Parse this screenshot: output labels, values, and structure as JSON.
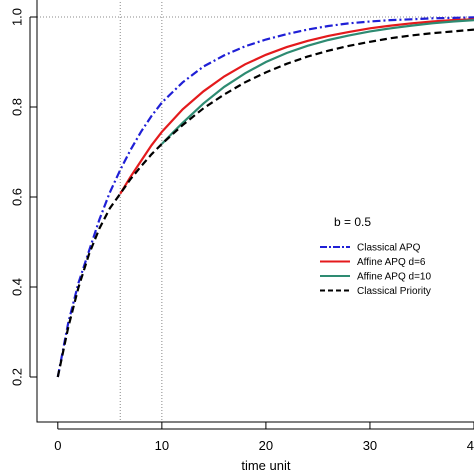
{
  "chart_data": {
    "type": "line",
    "xlabel": "time unit",
    "ylabel": "",
    "xlim": [
      -2,
      40
    ],
    "ylim": [
      0.1,
      1.0
    ],
    "xticks": [
      0,
      10,
      20,
      30,
      40
    ],
    "yticks": [
      0.2,
      0.4,
      0.6,
      0.8,
      1.0
    ],
    "xtick_labels": [
      "0",
      "10",
      "20",
      "30",
      "40"
    ],
    "ytick_labels": [
      "0.2",
      "0.4",
      "0.6",
      "0.8",
      "1.0"
    ],
    "reference_lines": {
      "x": [
        6,
        10
      ],
      "y": [
        1.0
      ],
      "style": "dotted"
    },
    "legend": {
      "title": "b = 0.5",
      "placement": "right",
      "entries": [
        "Classical APQ",
        "Affine APQ d=6",
        "Affine APQ d=10",
        "Classical Priority"
      ]
    },
    "series": [
      {
        "name": "Classical APQ",
        "color": "#1f1fd6",
        "dash": "dashdot",
        "x": [
          0,
          1,
          2,
          3,
          4,
          5,
          6,
          7,
          8,
          9,
          10,
          12,
          14,
          16,
          18,
          20,
          22,
          24,
          26,
          28,
          30,
          32,
          34,
          36,
          38,
          40
        ],
        "y": [
          0.2,
          0.32,
          0.41,
          0.48,
          0.55,
          0.61,
          0.66,
          0.705,
          0.745,
          0.78,
          0.81,
          0.855,
          0.89,
          0.915,
          0.935,
          0.95,
          0.962,
          0.972,
          0.98,
          0.986,
          0.99,
          0.993,
          0.995,
          0.997,
          0.998,
          0.999
        ]
      },
      {
        "name": "Affine APQ d=6",
        "color": "#e41a1c",
        "dash": "solid",
        "x": [
          6,
          7,
          8,
          9,
          10,
          12,
          14,
          16,
          18,
          20,
          22,
          24,
          26,
          28,
          30,
          32,
          34,
          36,
          38,
          40
        ],
        "y": [
          0.607,
          0.645,
          0.68,
          0.715,
          0.745,
          0.795,
          0.835,
          0.868,
          0.895,
          0.916,
          0.933,
          0.947,
          0.958,
          0.967,
          0.975,
          0.981,
          0.986,
          0.99,
          0.993,
          0.995
        ]
      },
      {
        "name": "Affine APQ d=10",
        "color": "#2e8b72",
        "dash": "solid",
        "x": [
          10,
          11,
          12,
          14,
          16,
          18,
          20,
          22,
          24,
          26,
          28,
          30,
          32,
          34,
          36,
          38,
          40
        ],
        "y": [
          0.718,
          0.742,
          0.765,
          0.808,
          0.845,
          0.875,
          0.9,
          0.92,
          0.936,
          0.949,
          0.959,
          0.968,
          0.975,
          0.981,
          0.986,
          0.99,
          0.993
        ]
      },
      {
        "name": "Classical Priority",
        "color": "#000000",
        "dash": "dashed",
        "x": [
          0,
          1,
          2,
          3,
          4,
          5,
          6,
          7,
          8,
          9,
          10,
          12,
          14,
          16,
          18,
          20,
          22,
          24,
          26,
          28,
          30,
          32,
          34,
          36,
          38,
          40
        ],
        "y": [
          0.2,
          0.31,
          0.4,
          0.473,
          0.53,
          0.575,
          0.607,
          0.64,
          0.668,
          0.695,
          0.718,
          0.76,
          0.797,
          0.828,
          0.855,
          0.877,
          0.896,
          0.912,
          0.925,
          0.936,
          0.945,
          0.953,
          0.959,
          0.964,
          0.968,
          0.972
        ]
      }
    ]
  }
}
